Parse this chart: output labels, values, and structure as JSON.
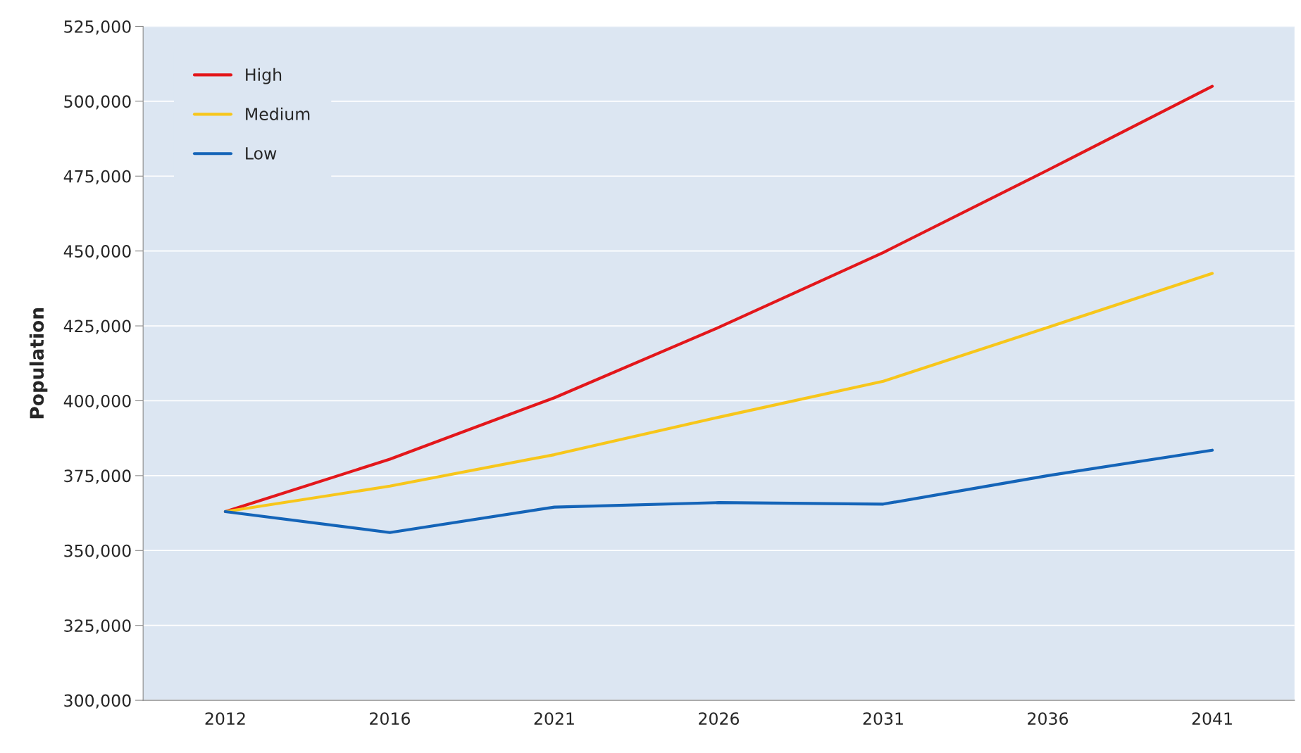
{
  "chart_data": {
    "type": "line",
    "ylabel": "Population",
    "categories": [
      "2012",
      "2016",
      "2021",
      "2026",
      "2031",
      "2036",
      "2041"
    ],
    "series": [
      {
        "name": "High",
        "color": "#e3171b",
        "values": [
          363000,
          380500,
          401000,
          424500,
          449500,
          477000,
          505000
        ]
      },
      {
        "name": "Medium",
        "color": "#f7c61b",
        "values": [
          363000,
          371500,
          382000,
          394500,
          406500,
          424500,
          442500
        ]
      },
      {
        "name": "Low",
        "color": "#1464b8",
        "values": [
          363000,
          356000,
          364500,
          366000,
          365500,
          375000,
          383500
        ]
      }
    ],
    "ylim": [
      300000,
      525000
    ],
    "yticks": [
      {
        "value": 300000,
        "label": "300,000"
      },
      {
        "value": 325000,
        "label": "325,000"
      },
      {
        "value": 350000,
        "label": "350,000"
      },
      {
        "value": 375000,
        "label": "375,000"
      },
      {
        "value": 400000,
        "label": "400,000"
      },
      {
        "value": 425000,
        "label": "425,000"
      },
      {
        "value": 450000,
        "label": "450,000"
      },
      {
        "value": 475000,
        "label": "475,000"
      },
      {
        "value": 500000,
        "label": "500,000"
      },
      {
        "value": 525000,
        "label": "525,000"
      }
    ],
    "grid": "y",
    "legend": "top left"
  }
}
